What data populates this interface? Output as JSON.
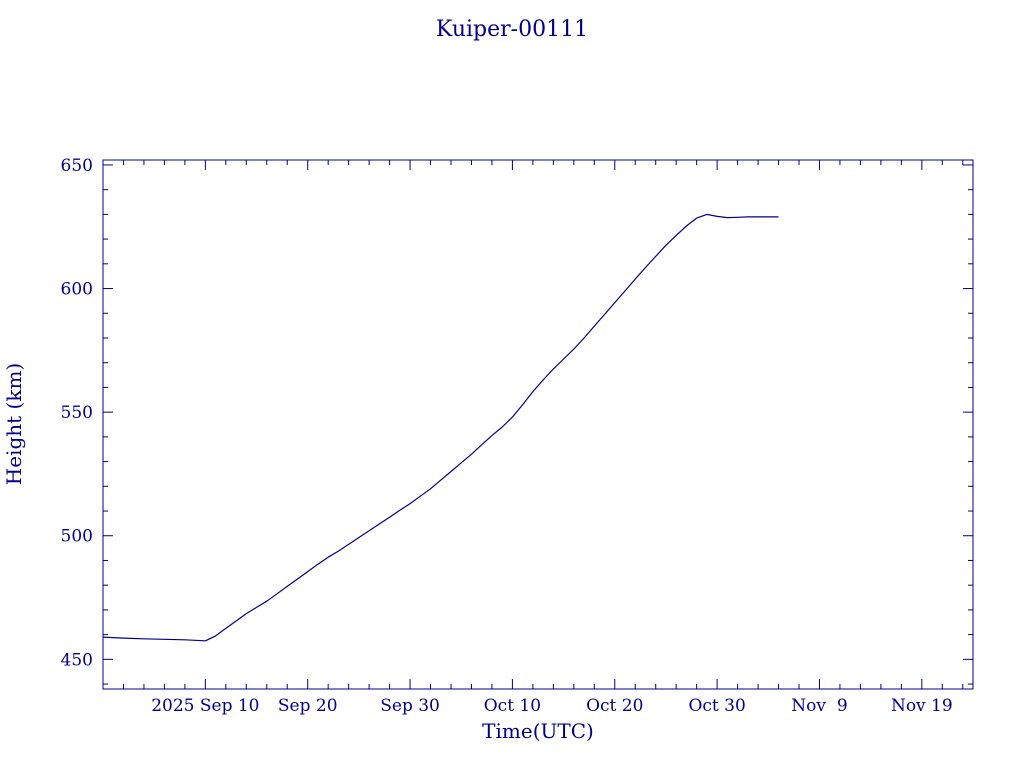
{
  "chart_data": {
    "type": "line",
    "title": "Kuiper-00111",
    "xlabel": "Time(UTC)",
    "ylabel": "Height (km)",
    "colors": {
      "foreground": "#00008b",
      "background": "#ffffff"
    },
    "xlim": [
      "2025-08-31T00:00",
      "2025-11-24T00:00"
    ],
    "ylim": [
      438,
      652
    ],
    "grid": false,
    "legend": "none",
    "x_ticks": [
      {
        "date": "2025-09-10",
        "label": "2025 Sep 10"
      },
      {
        "date": "2025-09-20",
        "label": "Sep 20"
      },
      {
        "date": "2025-09-30",
        "label": "Sep 30"
      },
      {
        "date": "2025-10-10",
        "label": "Oct 10"
      },
      {
        "date": "2025-10-20",
        "label": "Oct 20"
      },
      {
        "date": "2025-10-30",
        "label": "Oct 30"
      },
      {
        "date": "2025-11-09",
        "label": "Nov  9"
      },
      {
        "date": "2025-11-19",
        "label": "Nov 19"
      }
    ],
    "y_ticks": [
      {
        "value": 450,
        "label": "450"
      },
      {
        "value": 500,
        "label": "500"
      },
      {
        "value": 550,
        "label": "550"
      },
      {
        "value": 600,
        "label": "600"
      },
      {
        "value": 650,
        "label": "650"
      }
    ],
    "series": [
      {
        "x": [
          "2025-08-31",
          "2025-09-02",
          "2025-09-04",
          "2025-09-06",
          "2025-09-08",
          "2025-09-09",
          "2025-09-10",
          "2025-09-11",
          "2025-09-12",
          "2025-09-13",
          "2025-09-14",
          "2025-09-15",
          "2025-09-16",
          "2025-09-17",
          "2025-09-18",
          "2025-09-19",
          "2025-09-20",
          "2025-09-21",
          "2025-09-22",
          "2025-09-23",
          "2025-09-24",
          "2025-09-25",
          "2025-09-26",
          "2025-09-27",
          "2025-09-28",
          "2025-09-29",
          "2025-09-30",
          "2025-10-01",
          "2025-10-02",
          "2025-10-03",
          "2025-10-04",
          "2025-10-05",
          "2025-10-06",
          "2025-10-07",
          "2025-10-08",
          "2025-10-09",
          "2025-10-10",
          "2025-10-11",
          "2025-10-12",
          "2025-10-13",
          "2025-10-14",
          "2025-10-15",
          "2025-10-16",
          "2025-10-17",
          "2025-10-18",
          "2025-10-19",
          "2025-10-20",
          "2025-10-21",
          "2025-10-22",
          "2025-10-23",
          "2025-10-24",
          "2025-10-25",
          "2025-10-26",
          "2025-10-27",
          "2025-10-28",
          "2025-10-29",
          "2025-10-30",
          "2025-10-31",
          "2025-11-01",
          "2025-11-02",
          "2025-11-03",
          "2025-11-04",
          "2025-11-05"
        ],
        "y": [
          459,
          458.6,
          458.3,
          458.1,
          457.9,
          457.7,
          457.5,
          459.5,
          462.5,
          465.5,
          468.5,
          471,
          473.5,
          476.5,
          479.5,
          482.5,
          485.5,
          488.5,
          491.3,
          493.8,
          496.5,
          499.3,
          502,
          504.8,
          507.5,
          510.3,
          513,
          516,
          519,
          522.5,
          526,
          529.5,
          533,
          536.8,
          540.5,
          544,
          548,
          553,
          558.3,
          563,
          567.5,
          571.5,
          575.5,
          580,
          584.8,
          589.5,
          594.3,
          599,
          603.8,
          608.5,
          613,
          617.5,
          621.5,
          625.3,
          628.5,
          630,
          629.2,
          628.7,
          628.8,
          629,
          629,
          629,
          629
        ]
      }
    ]
  }
}
